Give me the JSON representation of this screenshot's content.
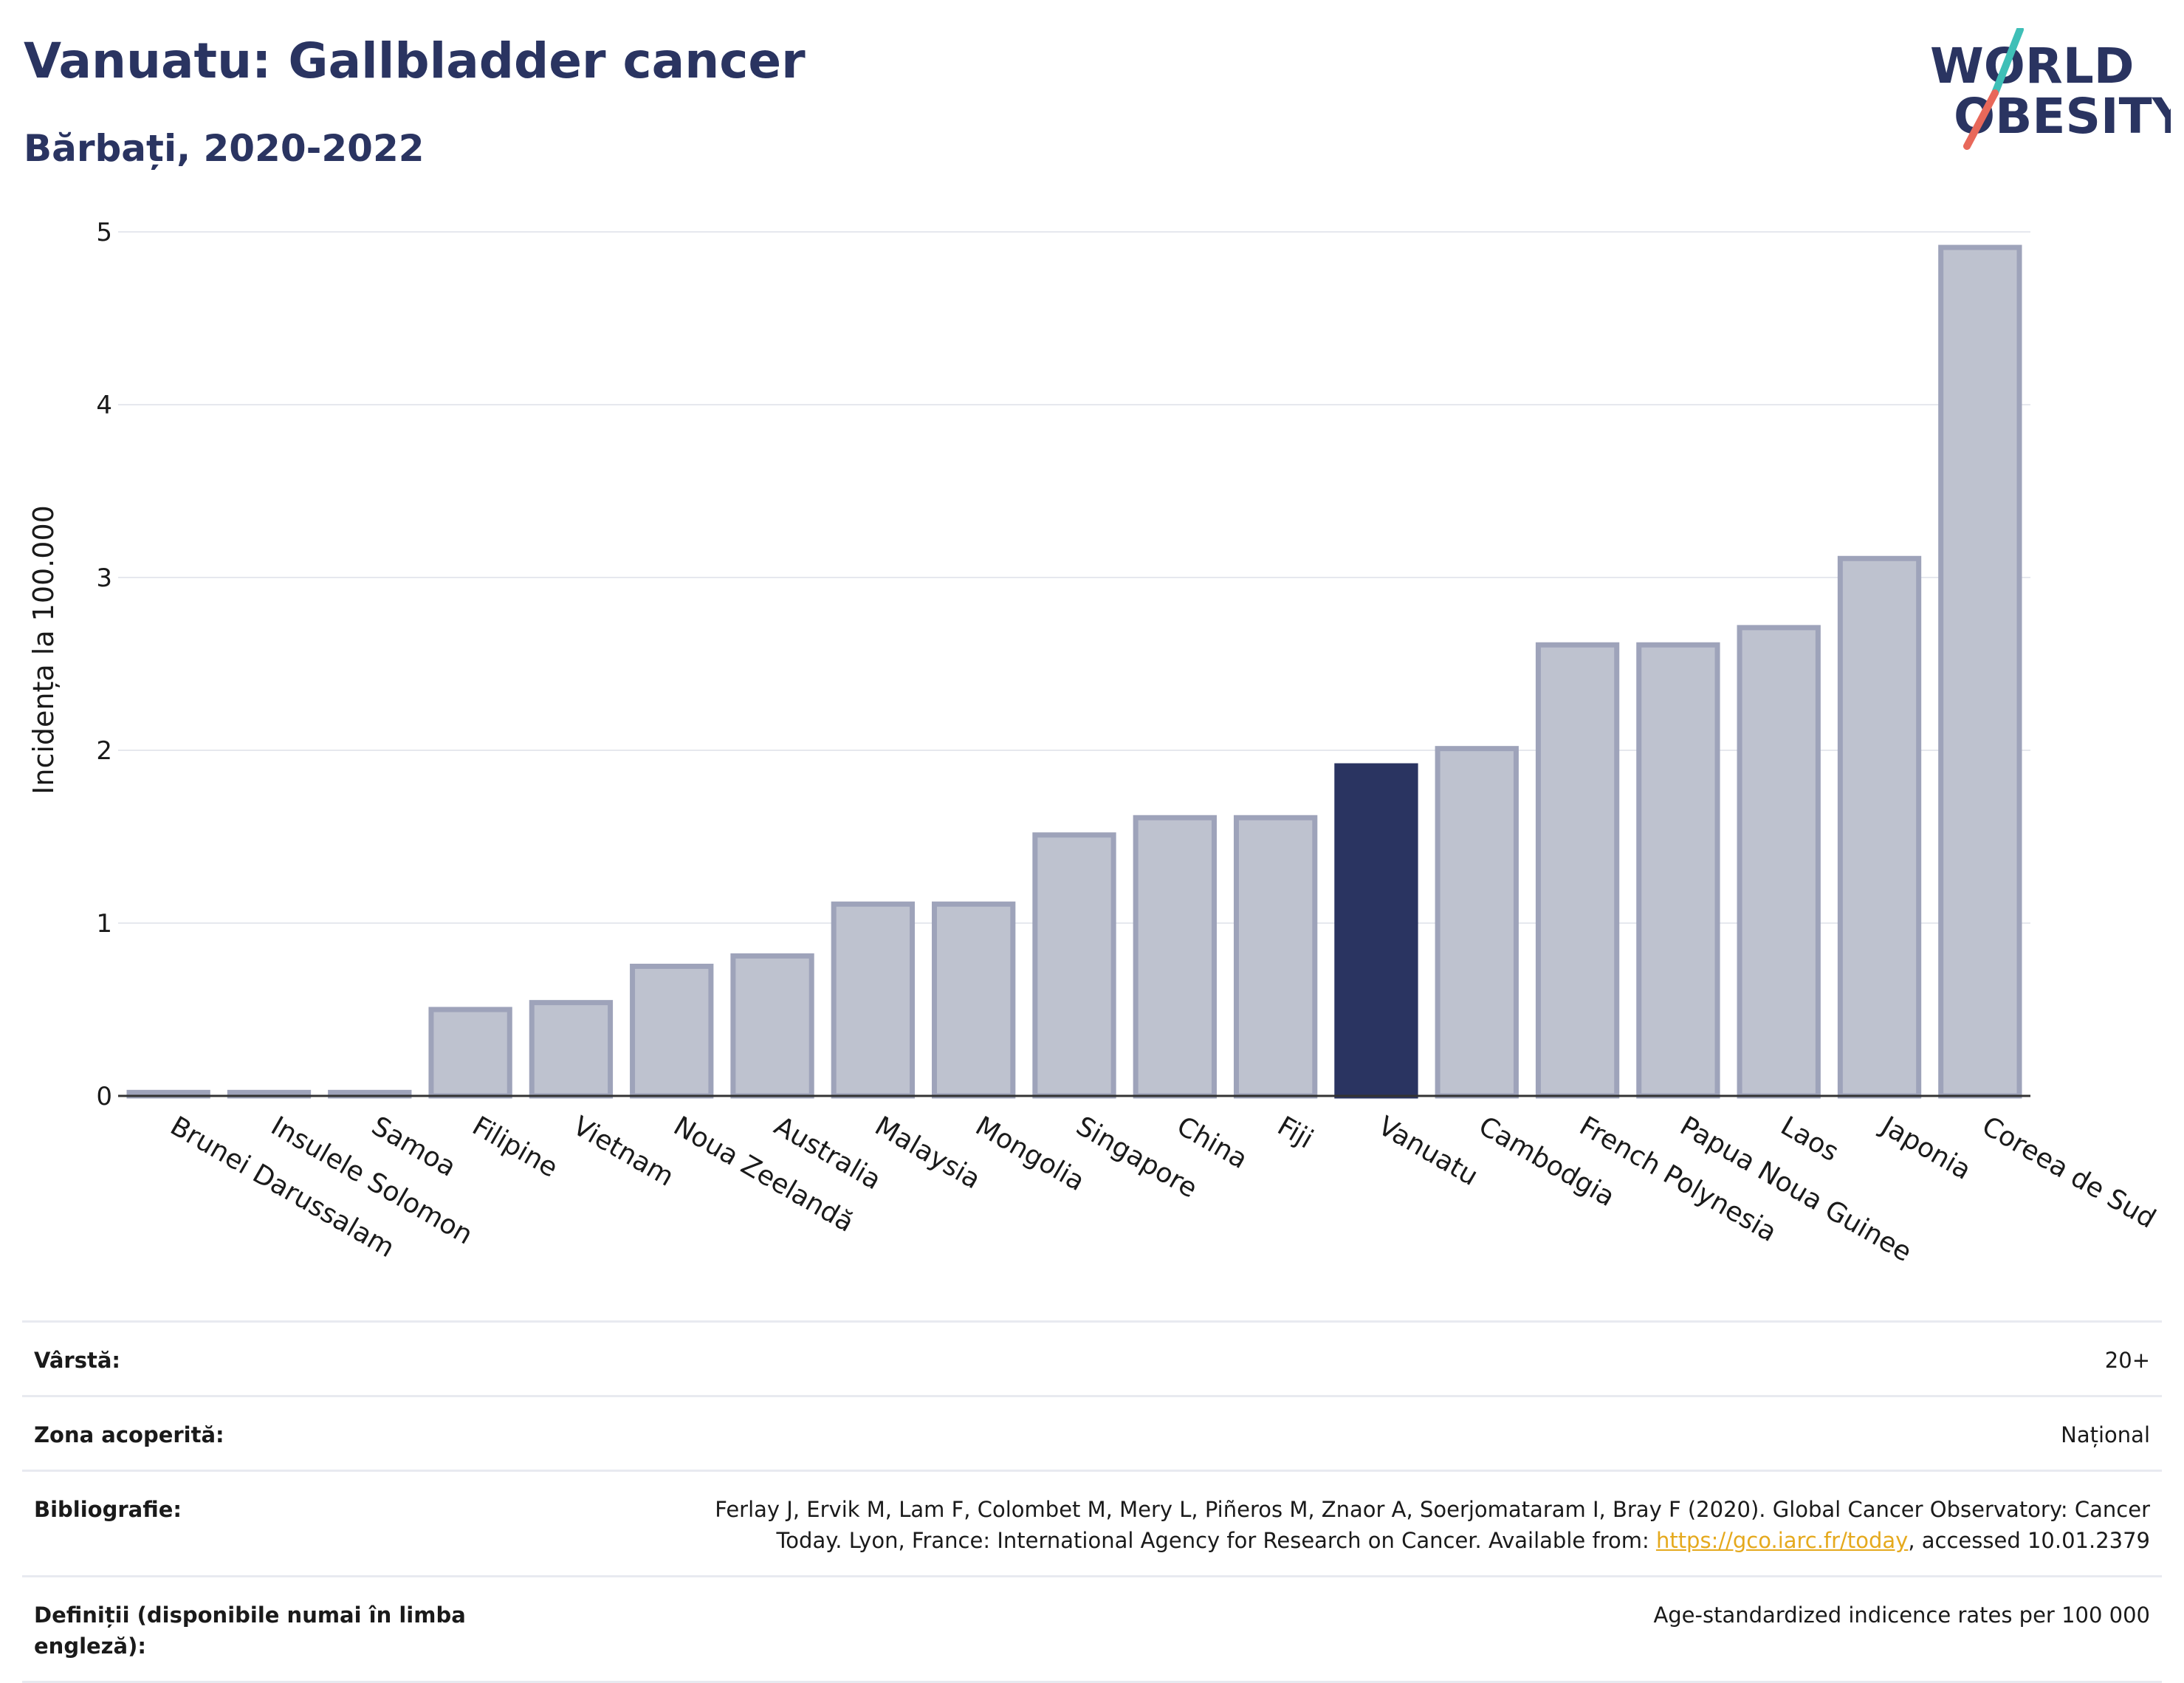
{
  "header": {
    "title": "Vanuatu: Gallbladder cancer",
    "subtitle": "Bărbați, 2020-2022"
  },
  "logo": {
    "line1": "WORLD",
    "line2": "OBESITY",
    "colors": {
      "text": "#2a3461",
      "slash_teal": "#3fbfb7",
      "slash_red": "#e8685a"
    }
  },
  "chart_data": {
    "type": "bar",
    "ylabel": "Incidența la 100.000",
    "xlabel": "",
    "ylim": [
      0,
      5
    ],
    "yticks": [
      0,
      1,
      2,
      3,
      4,
      5
    ],
    "grid": true,
    "highlight": "Vanuatu",
    "colors": {
      "bar": "#bec2cf",
      "bar_border": "#9ea3ba",
      "highlight": "#2a3461"
    },
    "categories": [
      "Brunei Darussalam",
      "Insulele Solomon",
      "Samoa",
      "Filipine",
      "Vietnam",
      "Noua Zeelandă",
      "Australia",
      "Malaysia",
      "Mongolia",
      "Singapore",
      "China",
      "Fiji",
      "Vanuatu",
      "Cambodgia",
      "French Polynesia",
      "Papua Noua Guinee",
      "Laos",
      "Japonia",
      "Coreea de Sud"
    ],
    "values": [
      0.02,
      0.02,
      0.02,
      0.5,
      0.54,
      0.75,
      0.81,
      1.11,
      1.11,
      1.51,
      1.61,
      1.61,
      1.91,
      2.01,
      2.61,
      2.61,
      2.71,
      3.11,
      4.91
    ]
  },
  "info": [
    {
      "label": "Vârstă:",
      "value": "20+"
    },
    {
      "label": "Zona acoperită:",
      "value": "Național"
    },
    {
      "label": "Bibliografie:",
      "value_line1": "Ferlay J, Ervik M, Lam F, Colombet M, Mery L, Piñeros M, Znaor A, Soerjomataram I, Bray F (2020). Global Cancer Observatory: Cancer",
      "value_line2_pre": "Today. Lyon, France: International Agency for Research on Cancer. Available from: ",
      "link": "https://gco.iarc.fr/today",
      "value_line2_post": ", accessed 10.01.2379"
    },
    {
      "label": "Definiții (disponibile numai în limba engleză):",
      "value": "Age-standardized indicence rates per 100 000"
    }
  ]
}
